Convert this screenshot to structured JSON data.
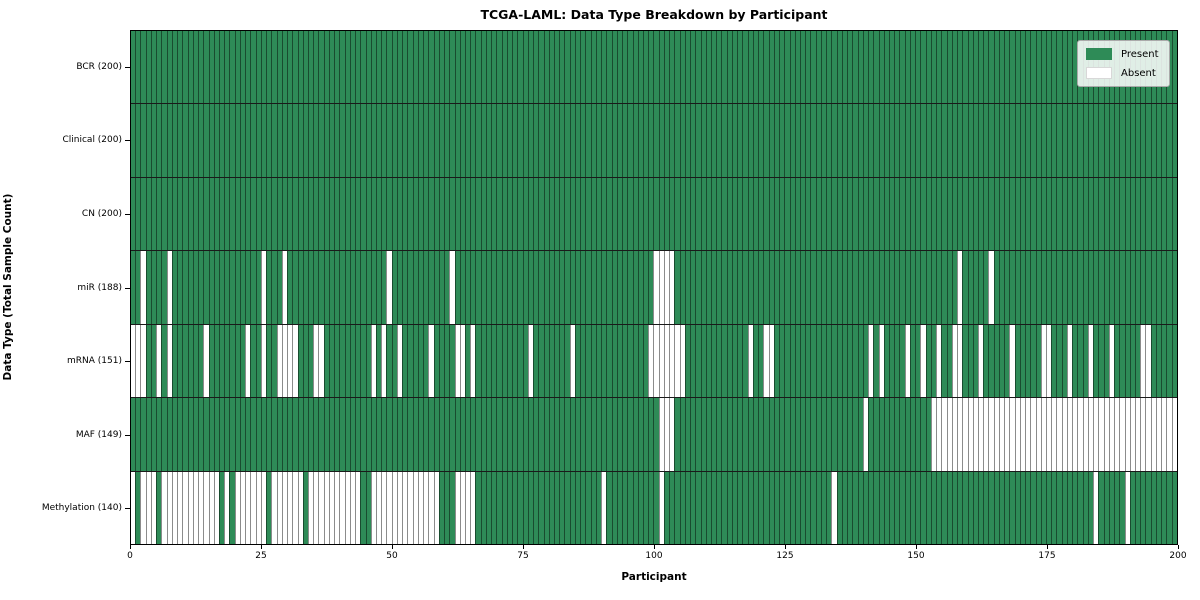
{
  "title": "TCGA-LAML: Data Type Breakdown by Participant",
  "xlabel": "Participant",
  "ylabel": "Data Type (Total Sample Count)",
  "legend": {
    "present_label": "Present",
    "absent_label": "Absent"
  },
  "colors": {
    "present": "#2e8b57",
    "absent": "#ffffff",
    "cell_edge": "rgba(0,0,0,0.45)",
    "figure_background": "#ffffff"
  },
  "chart_data": {
    "type": "heatmap",
    "title": "TCGA-LAML: Data Type Breakdown by Participant",
    "xlabel": "Participant",
    "ylabel": "Data Type (Total Sample Count)",
    "legend_position": "upper right",
    "grid": "per-cell vertical gridlines and row separator lines",
    "n_participants": 200,
    "x_range": [
      0,
      200
    ],
    "x_ticks": [
      0,
      25,
      50,
      75,
      100,
      125,
      150,
      175,
      200
    ],
    "value_encoding": {
      "present": "green cell",
      "absent": "white cell"
    },
    "rows": [
      {
        "key": "bcr",
        "label": "BCR (200)",
        "data_type": "BCR",
        "present_count": 200,
        "absent_count": 0,
        "absent_participants": []
      },
      {
        "key": "clinical",
        "label": "Clinical (200)",
        "data_type": "Clinical",
        "present_count": 200,
        "absent_count": 0,
        "absent_participants": []
      },
      {
        "key": "cn",
        "label": "CN (200)",
        "data_type": "CN",
        "present_count": 200,
        "absent_count": 0,
        "absent_participants": []
      },
      {
        "key": "mir",
        "label": "miR (188)",
        "data_type": "miR",
        "present_count": 188,
        "absent_count": 12,
        "absent_participants": [
          2,
          7,
          25,
          29,
          49,
          61,
          100,
          101,
          102,
          103,
          158,
          164
        ]
      },
      {
        "key": "mrna",
        "label": "mRNA (151)",
        "data_type": "mRNA",
        "present_count": 151,
        "absent_count": 49,
        "absent_participants": [
          0,
          1,
          2,
          5,
          7,
          14,
          22,
          25,
          28,
          29,
          30,
          31,
          35,
          36,
          46,
          48,
          51,
          57,
          62,
          63,
          65,
          76,
          84,
          99,
          100,
          101,
          102,
          103,
          104,
          105,
          118,
          121,
          122,
          141,
          143,
          148,
          151,
          154,
          157,
          158,
          162,
          168,
          174,
          175,
          179,
          183,
          187,
          193,
          194
        ]
      },
      {
        "key": "maf",
        "label": "MAF (149)",
        "data_type": "MAF",
        "present_count": 149,
        "absent_count": 51,
        "absent_participants": [
          101,
          102,
          103,
          140,
          153,
          154,
          155,
          156,
          157,
          158,
          159,
          160,
          161,
          162,
          163,
          164,
          165,
          166,
          167,
          168,
          169,
          170,
          171,
          172,
          173,
          174,
          175,
          176,
          177,
          178,
          179,
          180,
          181,
          182,
          183,
          184,
          185,
          186,
          187,
          188,
          189,
          190,
          191,
          192,
          193,
          194,
          195,
          196,
          197,
          198,
          199
        ]
      },
      {
        "key": "methylation",
        "label": "Methylation (140)",
        "data_type": "Methylation",
        "present_count": 140,
        "absent_count": 60,
        "absent_participants": [
          0,
          2,
          3,
          4,
          6,
          7,
          8,
          9,
          10,
          11,
          12,
          13,
          14,
          15,
          16,
          18,
          20,
          21,
          22,
          23,
          24,
          25,
          27,
          28,
          29,
          30,
          31,
          32,
          34,
          35,
          36,
          37,
          38,
          39,
          40,
          41,
          42,
          43,
          46,
          47,
          48,
          49,
          50,
          51,
          52,
          53,
          54,
          55,
          56,
          57,
          58,
          62,
          63,
          64,
          65,
          90,
          101,
          134,
          184,
          190
        ]
      }
    ]
  }
}
